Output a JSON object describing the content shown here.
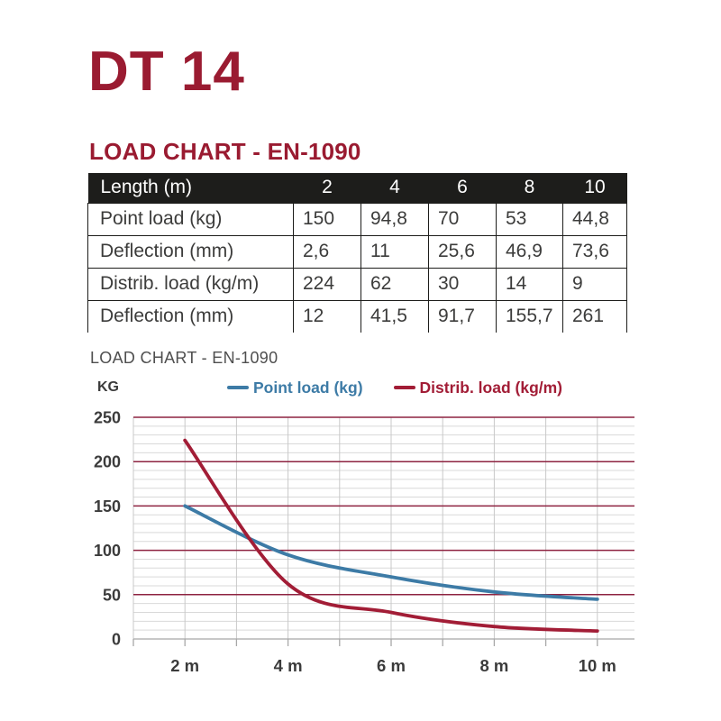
{
  "title": "DT 14",
  "heading": "LOAD CHART - EN-1090",
  "table": {
    "header": {
      "label": "Length (m)",
      "values": [
        "2",
        "4",
        "6",
        "8",
        "10"
      ]
    },
    "rows": [
      {
        "label": "Point load (kg)",
        "values": [
          "150",
          "94,8",
          "70",
          "53",
          "44,8"
        ]
      },
      {
        "label": "Deflection (mm)",
        "values": [
          "2,6",
          "11",
          "25,6",
          "46,9",
          "73,6"
        ]
      },
      {
        "label": "Distrib. load (kg/m)",
        "values": [
          "224",
          "62",
          "30",
          "14",
          "9"
        ]
      },
      {
        "label": "Deflection (mm)",
        "values": [
          "12",
          "41,5",
          "91,7",
          "155,7",
          "261"
        ]
      }
    ]
  },
  "chart_data": {
    "type": "line",
    "title": "LOAD CHART - EN-1090",
    "ylabel": "KG",
    "x": [
      2,
      4,
      6,
      8,
      10
    ],
    "x_tick_labels": [
      "2 m",
      "4 m",
      "6 m",
      "8 m",
      "10 m"
    ],
    "x_gridline_range": [
      1,
      10
    ],
    "ylim": [
      0,
      250
    ],
    "y_major_step": 50,
    "y_minor_step": 10,
    "y_tick_labels": [
      "0",
      "50",
      "100",
      "150",
      "200",
      "250"
    ],
    "grid": true,
    "legend_position": "top",
    "series": [
      {
        "name": "Point load (kg)",
        "color": "#3d7ba6",
        "values": [
          150,
          94.8,
          70,
          53,
          44.8
        ]
      },
      {
        "name": "Distrib. load (kg/m)",
        "color": "#a21d36",
        "values": [
          224,
          62,
          30,
          14,
          9
        ]
      }
    ]
  },
  "colors": {
    "maroon": "#9a1b31",
    "table_header_bg": "#1d1d1b",
    "table_header_text": "#ffffff",
    "table_text": "#3c3c3b",
    "table_border": "#1d1d1b",
    "grid_major": "#8e2340",
    "grid_minor": "#d9d9d9",
    "grid_vertical": "#c9c9c9",
    "axis_line": "#a8a8a8",
    "axis_label": "#3b3b3b",
    "chart_subtitle": "#4f4f4f"
  }
}
